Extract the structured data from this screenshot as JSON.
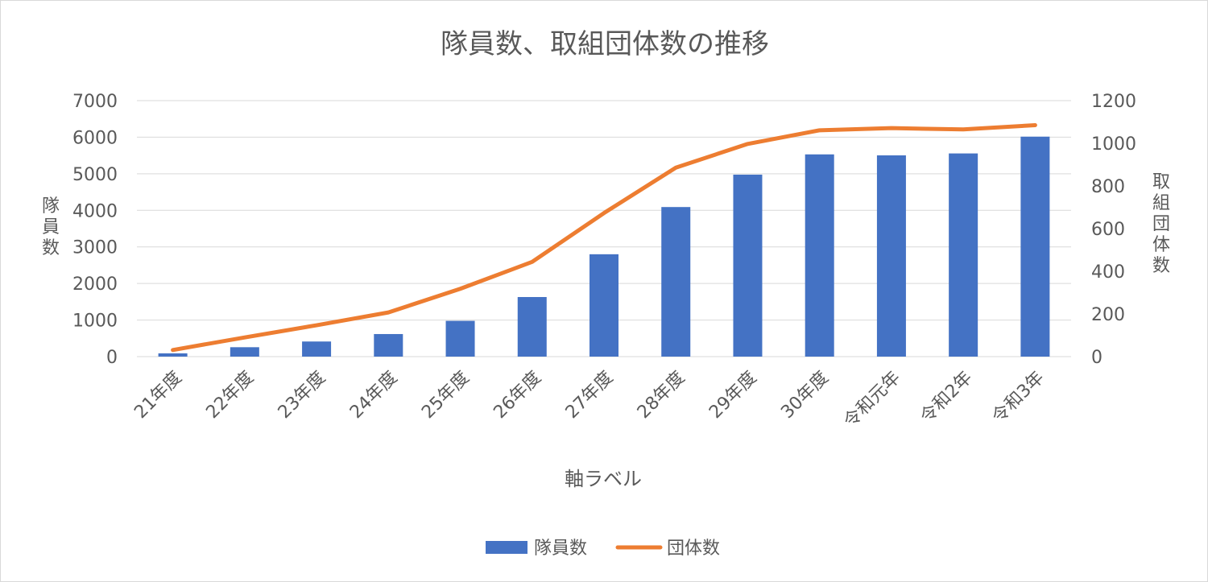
{
  "chart_data": {
    "type": "bar",
    "title": "隊員数、取組団体数の推移",
    "xlabel": "軸ラベル",
    "ylabel": "隊員数",
    "y2label": "取組団体数",
    "categories": [
      "21年度",
      "22年度",
      "23年度",
      "24年度",
      "25年度",
      "26年度",
      "27年度",
      "28年度",
      "29年度",
      "30年度",
      "令和元年",
      "令和2年",
      "令和3年"
    ],
    "ylim": [
      0,
      7000
    ],
    "yticks": [
      0,
      1000,
      2000,
      3000,
      4000,
      5000,
      6000,
      7000
    ],
    "y2lim": [
      0,
      1200
    ],
    "y2ticks": [
      0,
      200,
      400,
      600,
      800,
      1000,
      1200
    ],
    "grid": true,
    "legend_position": "bottom",
    "series": [
      {
        "name": "隊員数",
        "kind": "bar",
        "axis": "left",
        "color": "#4472c4",
        "values": [
          89,
          257,
          413,
          617,
          978,
          1629,
          2799,
          4090,
          4976,
          5530,
          5503,
          5556,
          6015
        ]
      },
      {
        "name": "団体数",
        "kind": "line",
        "axis": "right",
        "color": "#ed7d31",
        "values": [
          31,
          90,
          147,
          207,
          318,
          444,
          673,
          886,
          997,
          1061,
          1071,
          1065,
          1085
        ]
      }
    ]
  }
}
